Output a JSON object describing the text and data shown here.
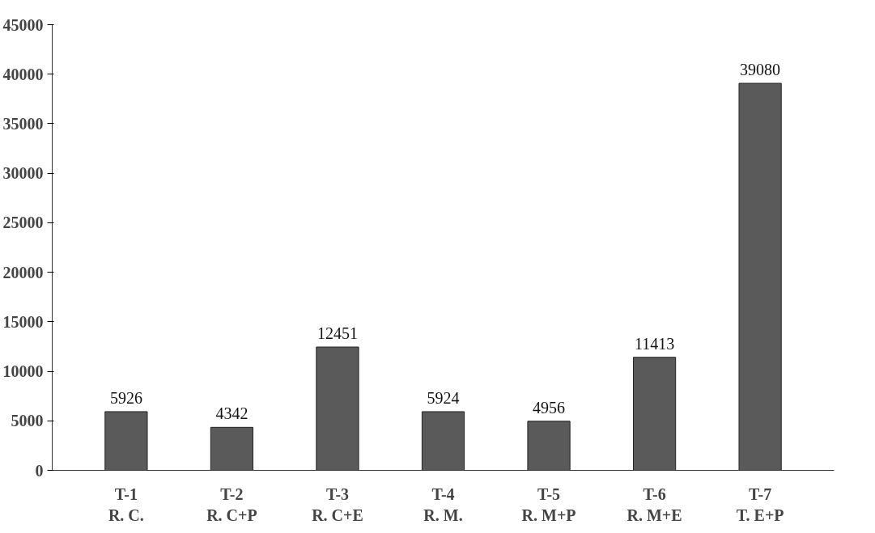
{
  "chart_data": {
    "type": "bar",
    "categories": [
      "T-1\nR. C.",
      "T-2\nR. C+P",
      "T-3\nR. C+E",
      "T-4\nR. M.",
      "T-5\nR. M+P",
      "T-6\nR. M+E",
      "T-7\nT. E+P"
    ],
    "values": [
      5926,
      4342,
      12451,
      5924,
      4956,
      11413,
      39080
    ],
    "color": "#5a5a5a",
    "ylim": [
      0,
      45000
    ],
    "yticks": [
      0,
      5000,
      10000,
      15000,
      20000,
      25000,
      30000,
      35000,
      40000,
      45000
    ],
    "grid": false,
    "data_labels": true
  }
}
